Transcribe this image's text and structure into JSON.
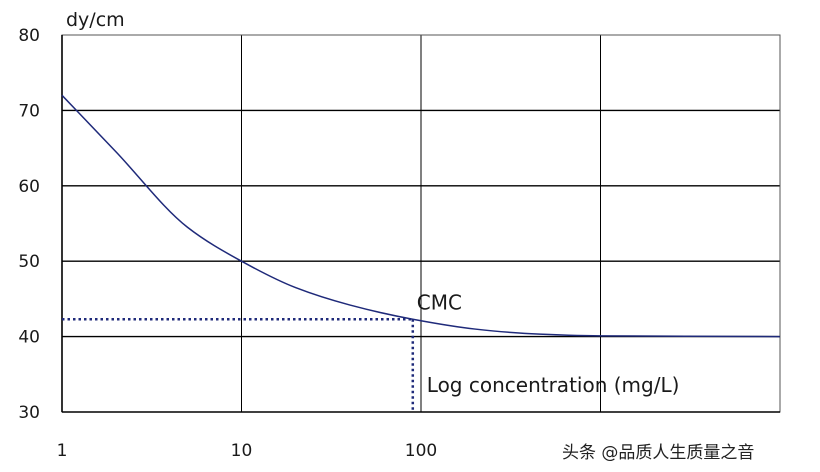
{
  "chart_data": {
    "type": "line",
    "title": "",
    "ylabel": "dy/cm",
    "xlabel": "Log concentration (mg/L)",
    "x_scale": "log",
    "xlim": [
      1,
      10000
    ],
    "ylim": [
      30,
      80
    ],
    "x_ticks": [
      {
        "value": 1,
        "label": "1"
      },
      {
        "value": 10,
        "label": "10"
      },
      {
        "value": 100,
        "label": "100"
      }
    ],
    "y_ticks": [
      {
        "value": 30,
        "label": "30"
      },
      {
        "value": 40,
        "label": "40"
      },
      {
        "value": 50,
        "label": "50"
      },
      {
        "value": 60,
        "label": "60"
      },
      {
        "value": 70,
        "label": "70"
      },
      {
        "value": 80,
        "label": "80"
      }
    ],
    "x_gridlines": [
      10,
      100,
      1000
    ],
    "horizontal_grid": true,
    "series": [
      {
        "name": "",
        "color": "#1f2a7a",
        "points": [
          {
            "x": 1,
            "y": 72
          },
          {
            "x": 2,
            "y": 64.5
          },
          {
            "x": 5,
            "y": 54.5
          },
          {
            "x": 10,
            "y": 50
          },
          {
            "x": 20,
            "y": 46.5
          },
          {
            "x": 40,
            "y": 44.2
          },
          {
            "x": 90,
            "y": 42.3
          },
          {
            "x": 200,
            "y": 41
          },
          {
            "x": 400,
            "y": 40.4
          },
          {
            "x": 1000,
            "y": 40.1
          },
          {
            "x": 10000,
            "y": 40
          }
        ]
      }
    ],
    "annotations": [
      {
        "label": "CMC",
        "x": 90,
        "y": 42.3
      }
    ]
  },
  "watermark": {
    "text": "头条 @品质人生质量之音"
  }
}
